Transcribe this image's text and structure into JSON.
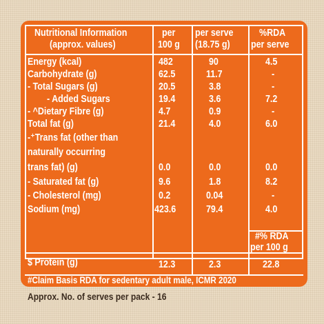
{
  "headers": {
    "nutrient": [
      "Nutritional Information",
      "(approx. values)"
    ],
    "per100": [
      "per",
      "100 g"
    ],
    "perServe": [
      "per serve",
      "(18.75 g)"
    ],
    "rda": [
      "%RDA",
      "per serve"
    ]
  },
  "rows": [
    {
      "label": "Energy (kcal)",
      "per100": "482",
      "perServe": "90",
      "rda": "4.5"
    },
    {
      "label": "Carbohydrate (g)",
      "per100": "62.5",
      "perServe": "11.7",
      "rda": "-"
    },
    {
      "label": "- Total Sugars (g)",
      "per100": "20.5",
      "perServe": "3.8",
      "rda": "-"
    },
    {
      "label": "- Added Sugars",
      "per100": "19.4",
      "perServe": "3.6",
      "rda": "7.2"
    },
    {
      "label": "- ^Dietary Fibre (g)",
      "per100": "4.7",
      "perServe": "0.9",
      "rda": "-"
    },
    {
      "label": "Total fat (g)",
      "per100": "21.4",
      "perServe": "4.0",
      "rda": "6.0"
    },
    {
      "label": "-⁺Trans fat (other than",
      "per100": "",
      "perServe": "",
      "rda": ""
    },
    {
      "label": "naturally occurring",
      "per100": "",
      "perServe": "",
      "rda": ""
    },
    {
      "label": "trans fat) (g)",
      "per100": "0.0",
      "perServe": "0.0",
      "rda": "0.0"
    },
    {
      "label": "- Saturated fat (g)",
      "per100": "9.6",
      "perServe": "1.8",
      "rda": "8.2"
    },
    {
      "label": "- Cholesterol (mg)",
      "per100": "0.2",
      "perServe": "0.04",
      "rda": "-"
    },
    {
      "label": "Sodium (mg)",
      "per100": "423.6",
      "perServe": "79.4",
      "rda": "4.0"
    }
  ],
  "rdaPer100Header": [
    "#% RDA",
    "per 100 g"
  ],
  "protein": {
    "label": "$ Protein (g)",
    "per100": "12.3",
    "perServe": "2.3",
    "rda": "22.8"
  },
  "footnote": "#Claim Basis RDA for sedentary adult male, ICMR 2020",
  "serves": "Approx. No. of serves per pack - 16"
}
